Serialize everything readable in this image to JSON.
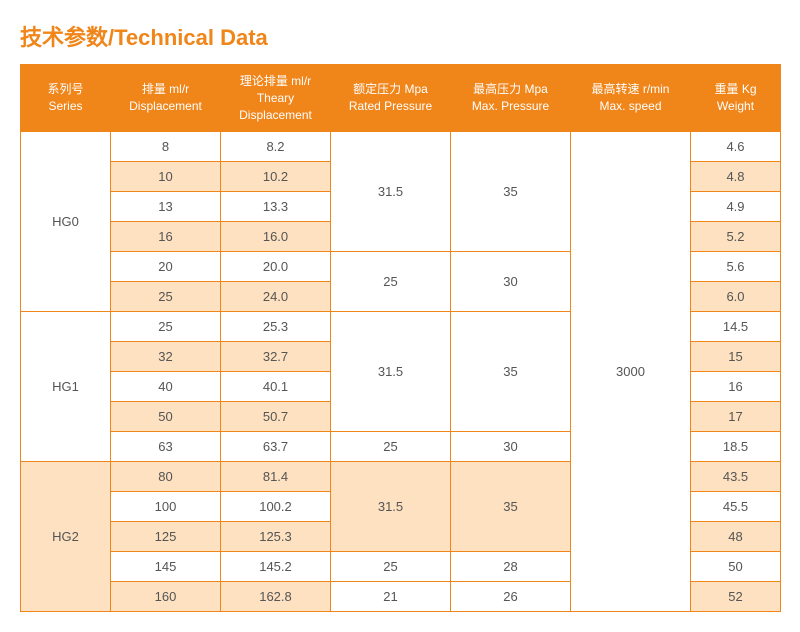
{
  "title": "技术参数/Technical Data",
  "colors": {
    "accent": "#f08519",
    "tint": "#fde1c0",
    "white": "#ffffff",
    "text": "#555555"
  },
  "headers": {
    "series": "系列号\nSeries",
    "displacement": "排量 ml/r\nDisplacement",
    "theory": "理论排量 ml/r\nTheary\nDisplacement",
    "rated": "额定压力 Mpa\nRated Pressure",
    "max_pressure": "最高压力 Mpa\nMax. Pressure",
    "max_speed": "最高转速 r/min\nMax. speed",
    "weight": "重量 Kg\nWeight"
  },
  "max_speed_value": "3000",
  "groups": [
    {
      "series": "HG0",
      "pressure_blocks": [
        {
          "rated": "31.5",
          "max": "35",
          "span": 4
        },
        {
          "rated": "25",
          "max": "30",
          "span": 2
        }
      ],
      "rows": [
        {
          "disp": "8",
          "theory": "8.2",
          "weight": "4.6",
          "tint": false
        },
        {
          "disp": "10",
          "theory": "10.2",
          "weight": "4.8",
          "tint": true
        },
        {
          "disp": "13",
          "theory": "13.3",
          "weight": "4.9",
          "tint": false
        },
        {
          "disp": "16",
          "theory": "16.0",
          "weight": "5.2",
          "tint": true
        },
        {
          "disp": "20",
          "theory": "20.0",
          "weight": "5.6",
          "tint": false
        },
        {
          "disp": "25",
          "theory": "24.0",
          "weight": "6.0",
          "tint": true
        }
      ]
    },
    {
      "series": "HG1",
      "pressure_blocks": [
        {
          "rated": "31.5",
          "max": "35",
          "span": 4
        },
        {
          "rated": "25",
          "max": "30",
          "span": 1
        }
      ],
      "rows": [
        {
          "disp": "25",
          "theory": "25.3",
          "weight": "14.5",
          "tint": false
        },
        {
          "disp": "32",
          "theory": "32.7",
          "weight": "15",
          "tint": true
        },
        {
          "disp": "40",
          "theory": "40.1",
          "weight": "16",
          "tint": false
        },
        {
          "disp": "50",
          "theory": "50.7",
          "weight": "17",
          "tint": true
        },
        {
          "disp": "63",
          "theory": "63.7",
          "weight": "18.5",
          "tint": false
        }
      ]
    },
    {
      "series": "HG2",
      "series_tint": true,
      "pressure_blocks": [
        {
          "rated": "31.5",
          "max": "35",
          "span": 3,
          "tint": true
        },
        {
          "rated": "25",
          "max": "28",
          "span": 1
        },
        {
          "rated": "21",
          "max": "26",
          "span": 1
        }
      ],
      "rows": [
        {
          "disp": "80",
          "theory": "81.4",
          "weight": "43.5",
          "tint": true
        },
        {
          "disp": "100",
          "theory": "100.2",
          "weight": "45.5",
          "tint": false
        },
        {
          "disp": "125",
          "theory": "125.3",
          "weight": "48",
          "tint": true
        },
        {
          "disp": "145",
          "theory": "145.2",
          "weight": "50",
          "tint": false
        },
        {
          "disp": "160",
          "theory": "162.8",
          "weight": "52",
          "tint": true
        }
      ]
    }
  ]
}
